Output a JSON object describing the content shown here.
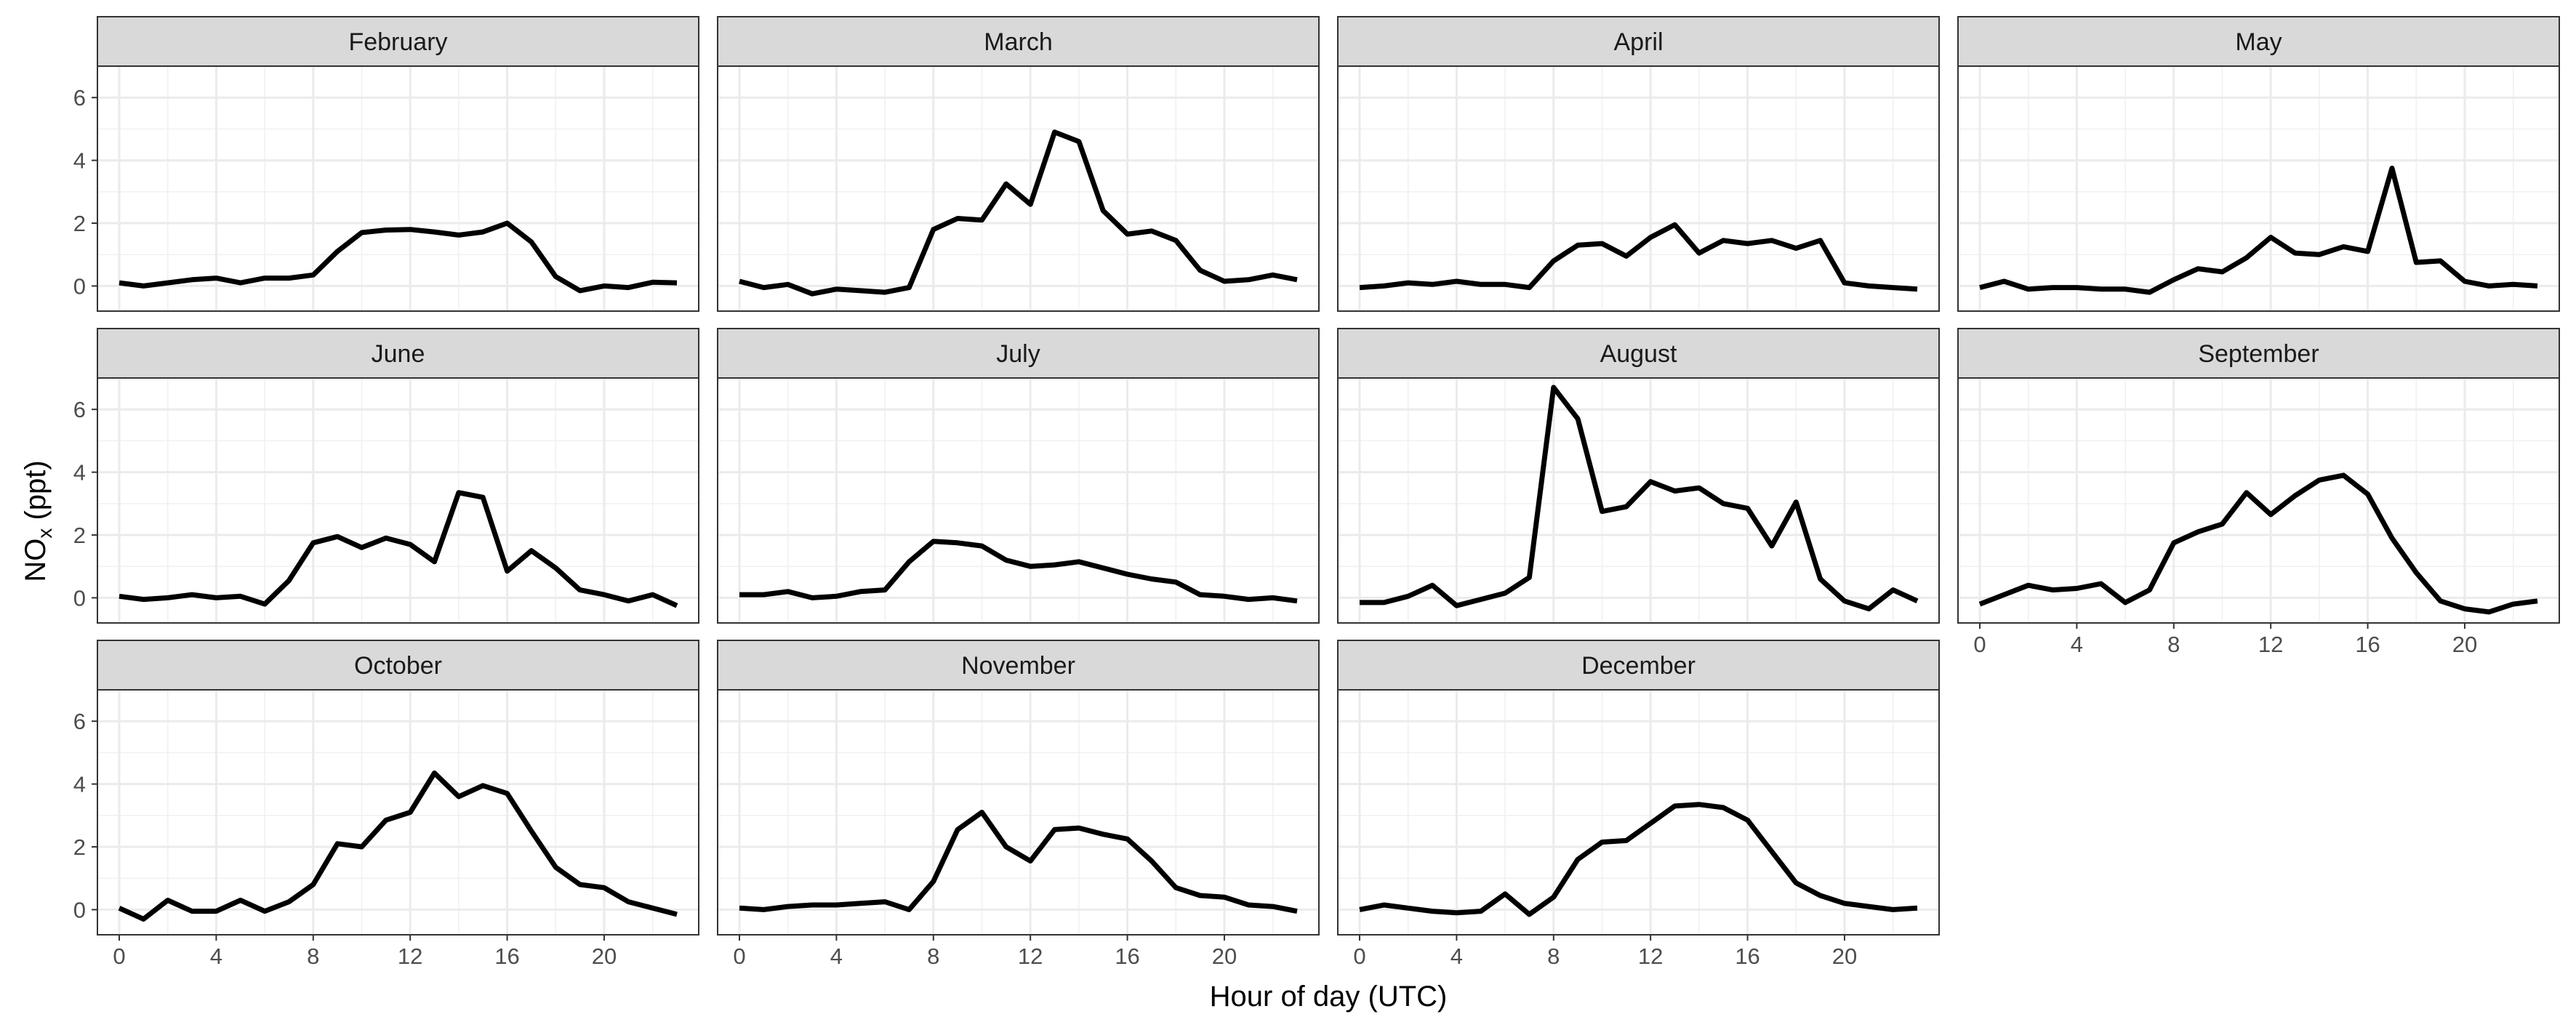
{
  "chart_data": {
    "type": "line",
    "facet_by": "month",
    "xlabel": "Hour of day (UTC)",
    "ylabel": "NOx (ppt)",
    "ylabel_main": "NO",
    "ylabel_sub": "x",
    "ylabel_tail": " (ppt)",
    "xlim": [
      -0.9,
      23.9
    ],
    "ylim": [
      -0.8,
      7.0
    ],
    "x_ticks": [
      0,
      4,
      8,
      12,
      16,
      20
    ],
    "y_ticks": [
      0,
      2,
      4,
      6
    ],
    "grid": true,
    "legend": "none",
    "line_color": "#000000",
    "x": [
      0,
      1,
      2,
      3,
      4,
      5,
      6,
      7,
      8,
      9,
      10,
      11,
      12,
      13,
      14,
      15,
      16,
      17,
      18,
      19,
      20,
      21,
      22,
      23
    ],
    "series": [
      {
        "name": "February",
        "values": [
          0.1,
          0.0,
          0.1,
          0.2,
          0.25,
          0.1,
          0.25,
          0.25,
          0.35,
          1.1,
          1.7,
          1.78,
          1.8,
          1.72,
          1.62,
          1.72,
          2.0,
          1.4,
          0.3,
          -0.15,
          0.0,
          -0.05,
          0.12,
          0.1
        ]
      },
      {
        "name": "March",
        "values": [
          0.15,
          -0.05,
          0.05,
          -0.25,
          -0.1,
          -0.15,
          -0.2,
          -0.05,
          1.8,
          2.15,
          2.1,
          3.25,
          2.6,
          4.9,
          4.6,
          2.4,
          1.65,
          1.75,
          1.45,
          0.5,
          0.15,
          0.2,
          0.35,
          0.2
        ]
      },
      {
        "name": "April",
        "values": [
          -0.05,
          0.0,
          0.1,
          0.05,
          0.15,
          0.05,
          0.05,
          -0.05,
          0.8,
          1.3,
          1.35,
          0.95,
          1.55,
          1.95,
          1.05,
          1.45,
          1.35,
          1.45,
          1.2,
          1.45,
          0.1,
          0.0,
          -0.05,
          -0.1
        ]
      },
      {
        "name": "May",
        "values": [
          -0.05,
          0.15,
          -0.1,
          -0.05,
          -0.05,
          -0.1,
          -0.1,
          -0.2,
          0.2,
          0.55,
          0.45,
          0.9,
          1.55,
          1.05,
          1.0,
          1.25,
          1.1,
          3.75,
          0.75,
          0.8,
          0.15,
          0.0,
          0.05,
          0.0
        ]
      },
      {
        "name": "June",
        "values": [
          0.05,
          -0.05,
          0.0,
          0.1,
          0.0,
          0.05,
          -0.2,
          0.55,
          1.75,
          1.95,
          1.6,
          1.9,
          1.7,
          1.15,
          3.35,
          3.2,
          0.85,
          1.5,
          0.95,
          0.25,
          0.1,
          -0.1,
          0.1,
          -0.25
        ]
      },
      {
        "name": "July",
        "values": [
          0.1,
          0.1,
          0.2,
          0.0,
          0.05,
          0.2,
          0.25,
          1.15,
          1.8,
          1.75,
          1.65,
          1.2,
          1.0,
          1.05,
          1.15,
          0.95,
          0.75,
          0.6,
          0.5,
          0.1,
          0.05,
          -0.05,
          0.0,
          -0.1
        ]
      },
      {
        "name": "August",
        "values": [
          -0.15,
          -0.15,
          0.05,
          0.4,
          -0.25,
          -0.05,
          0.15,
          0.65,
          6.7,
          5.7,
          2.75,
          2.9,
          3.7,
          3.4,
          3.5,
          3.0,
          2.85,
          1.65,
          3.05,
          0.6,
          -0.1,
          -0.35,
          0.25,
          -0.1
        ]
      },
      {
        "name": "September",
        "values": [
          -0.2,
          0.1,
          0.4,
          0.25,
          0.3,
          0.45,
          -0.15,
          0.25,
          1.75,
          2.1,
          2.35,
          3.35,
          2.65,
          3.25,
          3.75,
          3.9,
          3.3,
          1.9,
          0.8,
          -0.1,
          -0.35,
          -0.45,
          -0.2,
          -0.1
        ]
      },
      {
        "name": "October",
        "values": [
          0.05,
          -0.3,
          0.3,
          -0.05,
          -0.05,
          0.3,
          -0.05,
          0.25,
          0.8,
          2.1,
          2.0,
          2.85,
          3.1,
          4.35,
          3.6,
          3.95,
          3.7,
          2.5,
          1.35,
          0.8,
          0.7,
          0.25,
          0.05,
          -0.15
        ]
      },
      {
        "name": "November",
        "values": [
          0.05,
          0.0,
          0.1,
          0.15,
          0.15,
          0.2,
          0.25,
          0.0,
          0.9,
          2.55,
          3.1,
          2.0,
          1.55,
          2.55,
          2.6,
          2.4,
          2.25,
          1.55,
          0.7,
          0.45,
          0.4,
          0.15,
          0.1,
          -0.05
        ]
      },
      {
        "name": "December",
        "values": [
          0.0,
          0.15,
          0.05,
          -0.05,
          -0.1,
          -0.05,
          0.5,
          -0.15,
          0.4,
          1.6,
          2.15,
          2.2,
          2.75,
          3.3,
          3.35,
          3.25,
          2.85,
          1.85,
          0.85,
          0.45,
          0.2,
          0.1,
          0.0,
          0.05
        ]
      }
    ]
  }
}
